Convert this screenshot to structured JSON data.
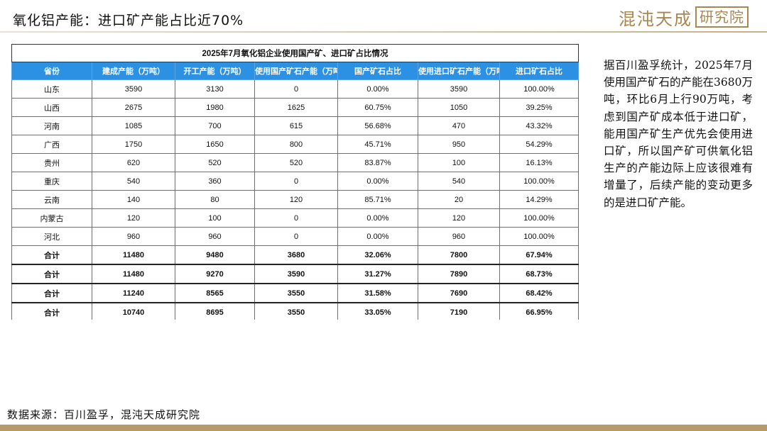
{
  "slide": {
    "title": "氧化铝产能：进口矿产能占比近70%",
    "brand_name": "混沌天成",
    "brand_box": "研究院"
  },
  "table": {
    "caption": "2025年7月氧化铝企业使用国产矿、进口矿占比情况",
    "headers": [
      "省份",
      "建成产能（万吨）",
      "开工产能（万吨）",
      "使用国产矿石产能（万吨）",
      "国产矿石占比",
      "使用进口矿石产能（万吨）",
      "进口矿石占比"
    ],
    "rows": [
      [
        "山东",
        "3590",
        "3130",
        "0",
        "0.00%",
        "3590",
        "100.00%"
      ],
      [
        "山西",
        "2675",
        "1980",
        "1625",
        "60.75%",
        "1050",
        "39.25%"
      ],
      [
        "河南",
        "1085",
        "700",
        "615",
        "56.68%",
        "470",
        "43.32%"
      ],
      [
        "广西",
        "1750",
        "1650",
        "800",
        "45.71%",
        "950",
        "54.29%"
      ],
      [
        "贵州",
        "620",
        "520",
        "520",
        "83.87%",
        "100",
        "16.13%"
      ],
      [
        "重庆",
        "540",
        "360",
        "0",
        "0.00%",
        "540",
        "100.00%"
      ],
      [
        "云南",
        "140",
        "80",
        "120",
        "85.71%",
        "20",
        "14.29%"
      ],
      [
        "内蒙古",
        "120",
        "100",
        "0",
        "0.00%",
        "120",
        "100.00%"
      ],
      [
        "河北",
        "960",
        "960",
        "0",
        "0.00%",
        "960",
        "100.00%"
      ]
    ],
    "totals": [
      [
        "合计",
        "11480",
        "9480",
        "3680",
        "32.06%",
        "7800",
        "67.94%"
      ],
      [
        "合计",
        "11480",
        "9270",
        "3590",
        "31.27%",
        "7890",
        "68.73%"
      ],
      [
        "合计",
        "11240",
        "8565",
        "3550",
        "31.58%",
        "7690",
        "68.42%"
      ],
      [
        "合计",
        "10740",
        "8695",
        "3550",
        "33.05%",
        "7190",
        "66.95%"
      ]
    ]
  },
  "side_text": "据百川盈孚统计，2025年7月使用国产矿石的产能在3680万吨，环比6月上行90万吨，考虑到国产矿成本低于进口矿，能用国产矿生产优先会使用进口矿，所以国产矿可供氧化铝生产的产能边际上应该很难有增量了，后续产能的变动更多的是进口矿产能。",
  "source": "数据来源：百川盈孚，混沌天成研究院",
  "colors": {
    "header_bg": "#2c91e2",
    "brand": "#a8864f",
    "bottom_bar": "#b59a6a"
  }
}
